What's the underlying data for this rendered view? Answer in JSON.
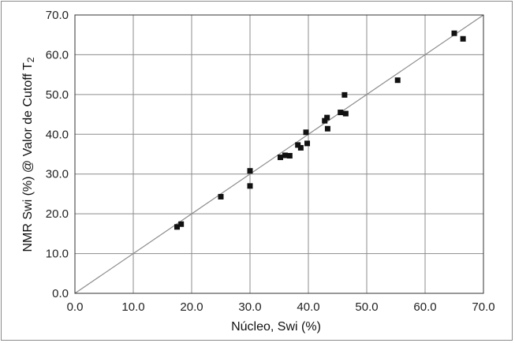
{
  "chart_data": {
    "type": "scatter",
    "xlabel": "Núcleo, Swi (%)",
    "ylabel": "NMR Swi (%) @ Valor de Cutoff T",
    "ylabel_subscript": "2",
    "xlim": [
      0,
      70
    ],
    "ylim": [
      0,
      70
    ],
    "x_ticks": [
      "0.0",
      "10.0",
      "20.0",
      "30.0",
      "40.0",
      "50.0",
      "60.0",
      "70.0"
    ],
    "y_ticks": [
      "0.0",
      "10.0",
      "20.0",
      "30.0",
      "40.0",
      "50.0",
      "60.0",
      "70.0"
    ],
    "grid": true,
    "reference_line": [
      [
        0,
        0
      ],
      [
        70,
        70
      ]
    ],
    "series": [
      {
        "points": [
          [
            17.5,
            16.7
          ],
          [
            18.2,
            17.4
          ],
          [
            25.0,
            24.3
          ],
          [
            30.0,
            27.0
          ],
          [
            30.0,
            30.8
          ],
          [
            35.2,
            34.2
          ],
          [
            36.0,
            34.7
          ],
          [
            36.8,
            34.6
          ],
          [
            38.2,
            37.3
          ],
          [
            38.7,
            36.6
          ],
          [
            39.6,
            40.5
          ],
          [
            39.8,
            37.7
          ],
          [
            42.8,
            43.4
          ],
          [
            43.2,
            44.2
          ],
          [
            43.3,
            41.4
          ],
          [
            45.5,
            45.5
          ],
          [
            46.2,
            49.9
          ],
          [
            46.4,
            45.2
          ],
          [
            55.3,
            53.6
          ],
          [
            65.0,
            65.4
          ],
          [
            66.5,
            64.0
          ]
        ]
      }
    ],
    "marker_color": "#111111",
    "grid_color": "#8c8c8c",
    "line_color": "#8c8c8c"
  }
}
